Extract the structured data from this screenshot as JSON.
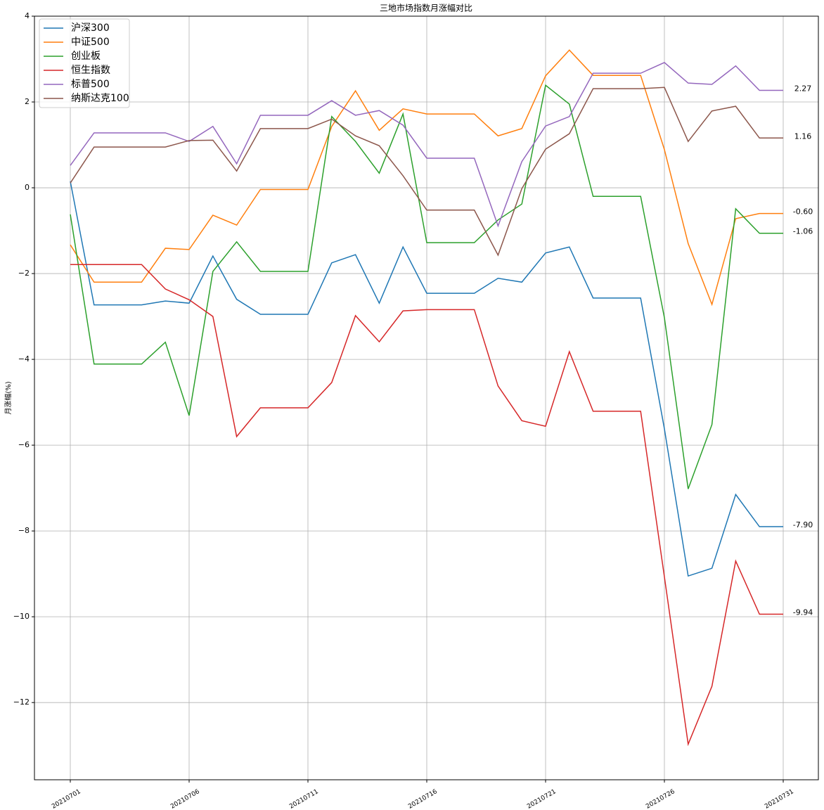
{
  "chart_data": {
    "type": "line",
    "title": "三地市场指数月涨幅对比",
    "y_label": "月涨幅(%)",
    "categories": [
      "20210701",
      null,
      null,
      null,
      null,
      "20210706",
      null,
      null,
      null,
      null,
      "20210711",
      null,
      null,
      null,
      null,
      "20210716",
      null,
      null,
      null,
      null,
      "20210721",
      null,
      null,
      null,
      null,
      "20210726",
      null,
      null,
      null,
      null,
      "20210731"
    ],
    "ylim": [
      -13.8,
      4
    ],
    "yticks": [
      {
        "value": -12,
        "label": "−12"
      },
      {
        "value": -10,
        "label": "−10"
      },
      {
        "value": -8,
        "label": "−8"
      },
      {
        "value": -6,
        "label": "−6"
      },
      {
        "value": -4,
        "label": "−4"
      },
      {
        "value": -2,
        "label": "−2"
      },
      0,
      2,
      4
    ],
    "grid": true,
    "legend": "upper-left",
    "series": [
      {
        "name": "沪深300",
        "color": "#1f77b4",
        "values": [
          0.15,
          -2.73,
          -2.73,
          -2.73,
          -2.64,
          -2.69,
          -1.59,
          -2.6,
          -2.95,
          -2.95,
          -2.95,
          -1.75,
          -1.56,
          -2.69,
          -1.38,
          -2.46,
          -2.46,
          -2.46,
          -2.11,
          -2.2,
          -1.52,
          -1.38,
          -2.57,
          -2.57,
          -2.57,
          -5.62,
          -9.05,
          -8.87,
          -7.15,
          -7.9,
          -7.9
        ],
        "value_labels": [
          null,
          null,
          null,
          null,
          null,
          null,
          null,
          null,
          null,
          null,
          null,
          null,
          null,
          null,
          null,
          null,
          null,
          null,
          null,
          null,
          null,
          null,
          null,
          null,
          null,
          null,
          null,
          null,
          null,
          null,
          "-7.90"
        ]
      },
      {
        "name": "中证500",
        "color": "#ff7f0e",
        "values": [
          -1.33,
          -2.2,
          -2.2,
          -2.2,
          -1.41,
          -1.44,
          -0.64,
          -0.87,
          -0.04,
          -0.04,
          -0.04,
          1.43,
          2.26,
          1.34,
          1.84,
          1.72,
          1.72,
          1.72,
          1.21,
          1.38,
          2.61,
          3.21,
          2.62,
          2.62,
          2.62,
          0.89,
          -1.3,
          -2.72,
          -0.72,
          -0.6,
          -0.6
        ],
        "value_labels": [
          null,
          null,
          null,
          null,
          null,
          null,
          null,
          null,
          null,
          null,
          null,
          null,
          null,
          null,
          null,
          null,
          null,
          null,
          null,
          null,
          null,
          null,
          null,
          null,
          null,
          null,
          null,
          null,
          null,
          null,
          "-0.60"
        ]
      },
      {
        "name": "创业板",
        "color": "#2ca02c",
        "values": [
          -0.62,
          -4.11,
          -4.11,
          -4.11,
          -3.6,
          -5.31,
          -1.95,
          -1.26,
          -1.95,
          -1.95,
          -1.95,
          1.66,
          1.08,
          0.34,
          1.72,
          -1.28,
          -1.28,
          -1.28,
          -0.75,
          -0.38,
          2.39,
          1.95,
          -0.2,
          -0.2,
          -0.2,
          -3.03,
          -7.02,
          -5.52,
          -0.49,
          -1.06,
          -1.06
        ],
        "value_labels": [
          null,
          null,
          null,
          null,
          null,
          null,
          null,
          null,
          null,
          null,
          null,
          null,
          null,
          null,
          null,
          null,
          null,
          null,
          null,
          null,
          null,
          null,
          null,
          null,
          null,
          null,
          null,
          null,
          null,
          null,
          "-1.06"
        ]
      },
      {
        "name": "恒生指数",
        "color": "#d62728",
        "values": [
          -1.79,
          -1.79,
          -1.79,
          -1.79,
          -2.36,
          -2.61,
          -3.0,
          -5.8,
          -5.13,
          -5.13,
          -5.13,
          -4.54,
          -2.98,
          -3.59,
          -2.87,
          -2.84,
          -2.84,
          -2.84,
          -4.62,
          -5.43,
          -5.56,
          -3.82,
          -5.21,
          -5.21,
          -5.21,
          -9.07,
          -12.97,
          -11.62,
          -8.7,
          -9.94,
          -9.94
        ],
        "value_labels": [
          null,
          null,
          null,
          null,
          null,
          null,
          null,
          null,
          null,
          null,
          null,
          null,
          null,
          null,
          null,
          null,
          null,
          null,
          null,
          null,
          null,
          null,
          null,
          null,
          null,
          null,
          null,
          null,
          null,
          null,
          "-9.94"
        ]
      },
      {
        "name": "标普500",
        "color": "#9467bd",
        "values": [
          0.52,
          1.28,
          1.28,
          1.28,
          1.28,
          1.08,
          1.43,
          0.56,
          1.69,
          1.69,
          1.69,
          2.03,
          1.69,
          1.8,
          1.46,
          0.69,
          0.69,
          0.69,
          -0.89,
          0.61,
          1.44,
          1.66,
          2.67,
          2.67,
          2.67,
          2.92,
          2.44,
          2.41,
          2.84,
          2.27,
          2.27
        ],
        "value_labels": [
          null,
          null,
          null,
          null,
          null,
          null,
          null,
          null,
          null,
          null,
          null,
          null,
          null,
          null,
          null,
          null,
          null,
          null,
          null,
          null,
          null,
          null,
          null,
          null,
          null,
          null,
          null,
          null,
          null,
          null,
          "2.27"
        ]
      },
      {
        "name": "纳斯达克100",
        "color": "#8c564b",
        "values": [
          0.11,
          0.95,
          0.95,
          0.95,
          0.95,
          1.1,
          1.11,
          0.39,
          1.38,
          1.38,
          1.38,
          1.6,
          1.21,
          0.98,
          0.28,
          -0.52,
          -0.52,
          -0.52,
          -1.57,
          -0.02,
          0.9,
          1.26,
          2.31,
          2.31,
          2.31,
          2.34,
          1.08,
          1.79,
          1.9,
          1.16,
          1.16
        ],
        "value_labels": [
          null,
          null,
          null,
          null,
          null,
          null,
          null,
          null,
          null,
          null,
          null,
          null,
          null,
          null,
          null,
          null,
          null,
          null,
          null,
          null,
          null,
          null,
          null,
          null,
          null,
          null,
          null,
          null,
          null,
          null,
          "1.16"
        ]
      }
    ]
  }
}
